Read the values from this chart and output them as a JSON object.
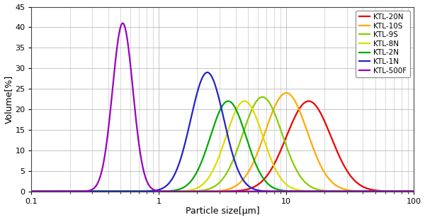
{
  "title": "",
  "xlabel": "Particle size[μm]",
  "ylabel": "Volume[%]",
  "xlim": [
    0.1,
    100
  ],
  "ylim": [
    0,
    45
  ],
  "yticks": [
    0,
    5,
    10,
    15,
    20,
    25,
    30,
    35,
    40,
    45
  ],
  "series": [
    {
      "label": "KTL-20N",
      "color": "#ee0000",
      "peak": 15.0,
      "sigma": 0.175,
      "height": 22.0
    },
    {
      "label": "KTL-10S",
      "color": "#ffaa00",
      "peak": 10.0,
      "sigma": 0.165,
      "height": 24.0
    },
    {
      "label": "KTL-9S",
      "color": "#88cc00",
      "peak": 6.5,
      "sigma": 0.155,
      "height": 23.0
    },
    {
      "label": "KTL-8N",
      "color": "#dddd00",
      "peak": 4.7,
      "sigma": 0.145,
      "height": 22.0
    },
    {
      "label": "KTL-2N",
      "color": "#00aa00",
      "peak": 3.5,
      "sigma": 0.14,
      "height": 22.0
    },
    {
      "label": "KTL-1N",
      "color": "#2222cc",
      "peak": 2.4,
      "sigma": 0.13,
      "height": 29.0
    },
    {
      "label": "KTL-500F",
      "color": "#9900bb",
      "peak": 0.52,
      "sigma": 0.08,
      "height": 41.0
    }
  ],
  "background_color": "#ffffff",
  "grid_color": "#bbbbbb",
  "legend_fontsize": 7.5,
  "axis_fontsize": 9,
  "tick_fontsize": 8,
  "linewidth": 1.6
}
